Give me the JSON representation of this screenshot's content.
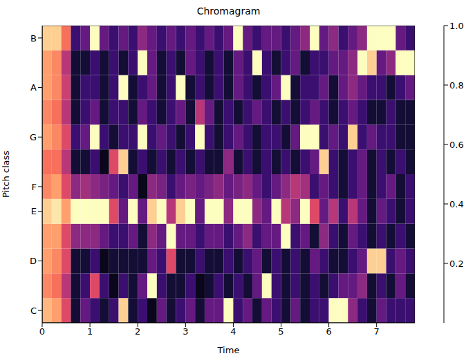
{
  "chart_data": {
    "type": "heatmap",
    "title": "Chromagram",
    "xlabel": "Time",
    "ylabel": "Pitch class",
    "categories": [
      "C",
      null,
      "D",
      null,
      "E",
      "F",
      null,
      "G",
      null,
      "A",
      null,
      "B"
    ],
    "x": [
      0,
      0.2,
      0.4,
      0.6,
      0.8,
      1.0,
      1.2,
      1.4,
      1.6,
      1.8,
      2.0,
      2.2,
      2.4,
      2.6,
      2.8,
      3.0,
      3.2,
      3.4,
      3.6,
      3.8,
      4.0,
      4.2,
      4.4,
      4.6,
      4.8,
      5.0,
      5.2,
      5.4,
      5.6,
      5.8,
      6.0,
      6.2,
      6.4,
      6.6,
      6.8,
      7.0,
      7.2,
      7.4,
      7.6,
      7.8
    ],
    "xlim": [
      0,
      7.8
    ],
    "xticks": [
      0,
      1,
      2,
      3,
      4,
      5,
      6,
      7
    ],
    "color": "magma",
    "values": [
      [
        0.85,
        0.8,
        0.6,
        0.1,
        0.3,
        0.2,
        0.1,
        0.2,
        0.9,
        0.1,
        0.2,
        0.05,
        0.3,
        0.1,
        0.2,
        0.3,
        0.1,
        0.3,
        0.3,
        1,
        0.2,
        0.3,
        0.1,
        0.3,
        0.2,
        0.1,
        0.3,
        0.1,
        0.2,
        0.2,
        1,
        1,
        0.4,
        0.2,
        0.1,
        0.3,
        0.2,
        0.2,
        0.2
      ],
      [
        0.75,
        0.7,
        0.5,
        0.1,
        0.2,
        0.6,
        0.2,
        0.05,
        0.2,
        0.1,
        0.3,
        1,
        0.2,
        0.1,
        0.1,
        0.2,
        0.05,
        0.1,
        0.2,
        0.1,
        0.2,
        0.1,
        0.3,
        1,
        0.2,
        0.1,
        0.2,
        0.1,
        0.2,
        0.1,
        0.2,
        0.3,
        0.3,
        0.4,
        0.1,
        0.2,
        0.1,
        0.3,
        0.1
      ],
      [
        0.8,
        0.75,
        0.6,
        0.1,
        0.1,
        0.2,
        0.05,
        0.1,
        0.1,
        0.1,
        0.1,
        0.3,
        0.2,
        0.6,
        0.1,
        0.1,
        0.2,
        0.1,
        0.1,
        0.2,
        0.1,
        0.2,
        0.3,
        0.1,
        0.2,
        0.1,
        0.2,
        0.1,
        0.3,
        0.2,
        0.1,
        0.1,
        0.2,
        0.3,
        0.9,
        0.9,
        0.2,
        0.3,
        0.2
      ],
      [
        0.8,
        0.8,
        0.6,
        0.4,
        0.4,
        0.4,
        0.3,
        0.2,
        0.2,
        0.3,
        0.1,
        0.4,
        0.3,
        1,
        0.3,
        0.3,
        0.2,
        0.3,
        0.3,
        0.2,
        0.3,
        0.4,
        0.2,
        0.3,
        0.3,
        1,
        0.2,
        0.3,
        0.1,
        0.4,
        0.2,
        0.1,
        0.3,
        0.2,
        0.1,
        0.2,
        0.1,
        0.2,
        0.1
      ],
      [
        0.9,
        0.95,
        0.8,
        1,
        1,
        1,
        1,
        0.6,
        0.3,
        1,
        0.3,
        0.9,
        1,
        0.5,
        0.9,
        1,
        0.3,
        1,
        1,
        0.4,
        1,
        1,
        0.4,
        0.3,
        1,
        0.5,
        0.4,
        1,
        0.6,
        0.3,
        0.5,
        0.2,
        0.5,
        0.3,
        0.1,
        0.3,
        0.2,
        0.1,
        0.2
      ],
      [
        0.75,
        0.8,
        0.6,
        0.4,
        0.45,
        0.4,
        0.35,
        0.3,
        0.2,
        0.3,
        0.05,
        0.4,
        0.35,
        0.2,
        0.3,
        0.35,
        0.3,
        0.35,
        0.4,
        0.3,
        0.35,
        0.4,
        0.3,
        0.2,
        0.3,
        0.4,
        0.5,
        0.45,
        0.2,
        0.3,
        0.2,
        0.1,
        0.2,
        0.3,
        0.1,
        0.2,
        0.3,
        0.1,
        0.2
      ],
      [
        0.7,
        0.7,
        0.5,
        0.1,
        0.1,
        0.2,
        0.05,
        0.6,
        0.9,
        0.1,
        0.2,
        0.1,
        0.2,
        0.1,
        0.2,
        0.1,
        0.2,
        0.1,
        0.1,
        0.4,
        0.1,
        0.2,
        0.1,
        0.2,
        0.1,
        0.2,
        0.1,
        0.2,
        0.3,
        0.9,
        0.2,
        0.1,
        0.2,
        0.3,
        0.1,
        0.2,
        0.1,
        0.2,
        0.1
      ],
      [
        0.8,
        0.75,
        0.6,
        0.2,
        0.3,
        1,
        0.2,
        0.1,
        0.2,
        0.2,
        1,
        0.2,
        0.3,
        0.2,
        0.1,
        0.2,
        1,
        0.2,
        0.1,
        0.2,
        0.3,
        0.2,
        0.1,
        0.2,
        0.2,
        0.1,
        0.3,
        1,
        1,
        0.2,
        0.3,
        0.2,
        0.9,
        0.2,
        0.3,
        0.2,
        0.2,
        0.1,
        0.1
      ],
      [
        0.75,
        0.7,
        0.5,
        0.1,
        0.2,
        0.3,
        0.1,
        0.2,
        0.2,
        0.1,
        0.3,
        0.2,
        0.1,
        0.2,
        0.3,
        0.1,
        0.5,
        0.3,
        0.1,
        0.2,
        0.1,
        0.2,
        0.3,
        0.2,
        0.1,
        0.2,
        0.1,
        0.2,
        0.3,
        0.2,
        0.1,
        0.2,
        0.3,
        0.2,
        0.1,
        0.1,
        0.2,
        0.1,
        0.1
      ],
      [
        0.8,
        0.75,
        0.55,
        0.1,
        0.2,
        0.2,
        0.1,
        0.2,
        1,
        0.1,
        0.2,
        0.3,
        0.1,
        0.2,
        1,
        0.1,
        0.2,
        0.1,
        0.2,
        0.1,
        0.3,
        0.2,
        0.1,
        0.2,
        0.3,
        1,
        0.1,
        0.2,
        0.2,
        0.3,
        0.1,
        0.3,
        0.4,
        0.3,
        0.2,
        0.2,
        0.1,
        0.2,
        0.3
      ],
      [
        0.8,
        0.75,
        0.5,
        0.1,
        0.1,
        0.2,
        0.1,
        0.2,
        0.1,
        0.2,
        1,
        0.3,
        0.1,
        0.2,
        0.1,
        0.3,
        0.2,
        0.1,
        0.2,
        0.1,
        0.3,
        0.2,
        1,
        0.2,
        0.1,
        0.2,
        0.3,
        0.1,
        0.2,
        0.2,
        0.3,
        0.3,
        0.4,
        1,
        0.9,
        0.3,
        0.4,
        1,
        1
      ],
      [
        0.9,
        0.9,
        0.7,
        0.2,
        0.3,
        1,
        0.3,
        0.2,
        0.3,
        0.2,
        0.4,
        0.3,
        0.2,
        0.3,
        0.2,
        0.3,
        0.2,
        0.3,
        0.2,
        0.3,
        1,
        0.3,
        0.2,
        0.3,
        0.3,
        0.2,
        0.3,
        0.4,
        1,
        0.3,
        0.4,
        0.2,
        0.3,
        0.4,
        1,
        1,
        1,
        0.3,
        0.2
      ]
    ],
    "colorbar_range": [
      0,
      1
    ],
    "colorbar_ticks": [
      0.2,
      0.4,
      0.6,
      0.8,
      {
        "value": 1,
        "label": "1.0"
      }
    ]
  }
}
